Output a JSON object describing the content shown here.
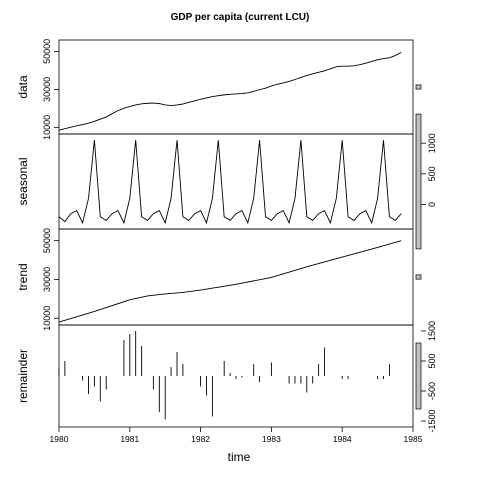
{
  "chart_data": {
    "type": "line",
    "title": "GDP per capita (current LCU)",
    "xlabel": "time",
    "x_ticks": [
      "1980",
      "1981",
      "1982",
      "1983",
      "1984",
      "1985"
    ],
    "xlim": [
      1980,
      1985
    ],
    "panels": [
      {
        "name": "data",
        "ylabel": "data",
        "render": "line",
        "ylim": [
          6500,
          56000
        ],
        "y_ticks": [
          10000,
          30000,
          50000
        ],
        "y_tick_side": "left",
        "x": [
          1980.0,
          1980.083,
          1980.167,
          1980.25,
          1980.333,
          1980.417,
          1980.5,
          1980.583,
          1980.667,
          1980.75,
          1980.833,
          1980.917,
          1981.0,
          1981.083,
          1981.167,
          1981.25,
          1981.333,
          1981.417,
          1981.5,
          1981.583,
          1981.667,
          1981.75,
          1981.833,
          1981.917,
          1982.0,
          1982.083,
          1982.167,
          1982.25,
          1982.333,
          1982.417,
          1982.5,
          1982.583,
          1982.667,
          1982.75,
          1982.833,
          1982.917,
          1983.0,
          1983.083,
          1983.167,
          1983.25,
          1983.333,
          1983.417,
          1983.5,
          1983.583,
          1983.667,
          1983.75,
          1983.833,
          1983.917,
          1984.0,
          1984.083,
          1984.167,
          1984.25,
          1984.333,
          1984.417,
          1984.5,
          1984.583,
          1984.667,
          1984.75,
          1984.833
        ],
        "values": [
          8500,
          9300,
          10100,
          10800,
          11500,
          12200,
          13200,
          14300,
          15500,
          17200,
          18800,
          20000,
          21000,
          21800,
          22400,
          22700,
          22800,
          22500,
          21800,
          21500,
          21800,
          22300,
          23200,
          24000,
          24800,
          25500,
          26200,
          26700,
          27100,
          27400,
          27600,
          27800,
          28200,
          29000,
          29800,
          30600,
          31800,
          32700,
          33400,
          34200,
          35200,
          36300,
          37300,
          38200,
          39000,
          39800,
          40800,
          41900,
          42200,
          42200,
          42400,
          43000,
          43800,
          44700,
          45600,
          46200,
          46600,
          47800,
          49500
        ]
      },
      {
        "name": "seasonal",
        "ylabel": "seasonal",
        "render": "line",
        "ylim": [
          -400,
          1150
        ],
        "y_ticks": [
          0,
          500,
          1000
        ],
        "y_tick_side": "right",
        "x": [
          1980.0,
          1980.083,
          1980.167,
          1980.25,
          1980.333,
          1980.417,
          1980.5,
          1980.583,
          1980.667,
          1980.75,
          1980.833,
          1980.917,
          1981.0,
          1981.083,
          1981.167,
          1981.25,
          1981.333,
          1981.417,
          1981.5,
          1981.583,
          1981.667,
          1981.75,
          1981.833,
          1981.917,
          1982.0,
          1982.083,
          1982.167,
          1982.25,
          1982.333,
          1982.417,
          1982.5,
          1982.583,
          1982.667,
          1982.75,
          1982.833,
          1982.917,
          1983.0,
          1983.083,
          1983.167,
          1983.25,
          1983.333,
          1983.417,
          1983.5,
          1983.583,
          1983.667,
          1983.75,
          1983.833,
          1983.917,
          1984.0,
          1984.083,
          1984.167,
          1984.25,
          1984.333,
          1984.417,
          1984.5,
          1984.583,
          1984.667,
          1984.75,
          1984.833
        ],
        "values": [
          -200,
          -280,
          -150,
          -100,
          -300,
          100,
          1050,
          -200,
          -260,
          -150,
          -100,
          -300,
          100,
          1050,
          -200,
          -260,
          -150,
          -100,
          -300,
          100,
          1050,
          -200,
          -260,
          -150,
          -100,
          -300,
          100,
          1050,
          -200,
          -260,
          -150,
          -100,
          -300,
          100,
          1050,
          -200,
          -260,
          -150,
          -100,
          -300,
          100,
          1050,
          -200,
          -260,
          -150,
          -100,
          -300,
          100,
          1050,
          -200,
          -260,
          -150,
          -100,
          -300,
          100,
          1050,
          -200,
          -260,
          -150
        ]
      },
      {
        "name": "trend",
        "ylabel": "trend",
        "render": "line",
        "ylim": [
          6500,
          56000
        ],
        "y_ticks": [
          10000,
          30000,
          50000
        ],
        "y_tick_side": "left",
        "x": [
          1980.0,
          1980.5,
          1981.0,
          1981.25,
          1981.5,
          1981.75,
          1982.0,
          1982.5,
          1983.0,
          1983.5,
          1984.0,
          1984.5,
          1984.833
        ],
        "values": [
          8000,
          13500,
          19500,
          21500,
          22500,
          23300,
          24500,
          27500,
          31000,
          36500,
          41500,
          46500,
          50000
        ]
      },
      {
        "name": "remainder",
        "ylabel": "remainder",
        "render": "hist",
        "ylim": [
          -1700,
          1700
        ],
        "y_ticks": [
          -1500,
          -500,
          500,
          1500
        ],
        "y_tick_side": "right",
        "x": [
          1980.0,
          1980.083,
          1980.167,
          1980.25,
          1980.333,
          1980.417,
          1980.5,
          1980.583,
          1980.667,
          1980.75,
          1980.833,
          1980.917,
          1981.0,
          1981.083,
          1981.167,
          1981.25,
          1981.333,
          1981.417,
          1981.5,
          1981.583,
          1981.667,
          1981.75,
          1981.833,
          1981.917,
          1982.0,
          1982.083,
          1982.167,
          1982.25,
          1982.333,
          1982.417,
          1982.5,
          1982.583,
          1982.667,
          1982.75,
          1982.833,
          1982.917,
          1983.0,
          1983.083,
          1983.167,
          1983.25,
          1983.333,
          1983.417,
          1983.5,
          1983.583,
          1983.667,
          1983.75,
          1983.833,
          1983.917,
          1984.0,
          1984.083,
          1984.167,
          1984.25,
          1984.333,
          1984.417,
          1984.5,
          1984.583,
          1984.667,
          1984.75,
          1984.833
        ],
        "values": [
          250,
          500,
          0,
          0,
          -150,
          -600,
          -350,
          -850,
          -450,
          0,
          0,
          1200,
          1400,
          1500,
          1000,
          0,
          -450,
          -1200,
          -1450,
          300,
          800,
          400,
          0,
          0,
          -350,
          -650,
          -1350,
          0,
          500,
          100,
          -100,
          -50,
          0,
          400,
          -200,
          0,
          450,
          0,
          0,
          -250,
          -250,
          -250,
          -550,
          -250,
          400,
          950,
          0,
          0,
          -100,
          -100,
          0,
          0,
          0,
          0,
          -100,
          -100,
          400,
          0,
          0
        ]
      }
    ],
    "colors": {
      "line": "#000000",
      "scale_bar_fill": "#bebebe",
      "frame": "#000000"
    }
  }
}
